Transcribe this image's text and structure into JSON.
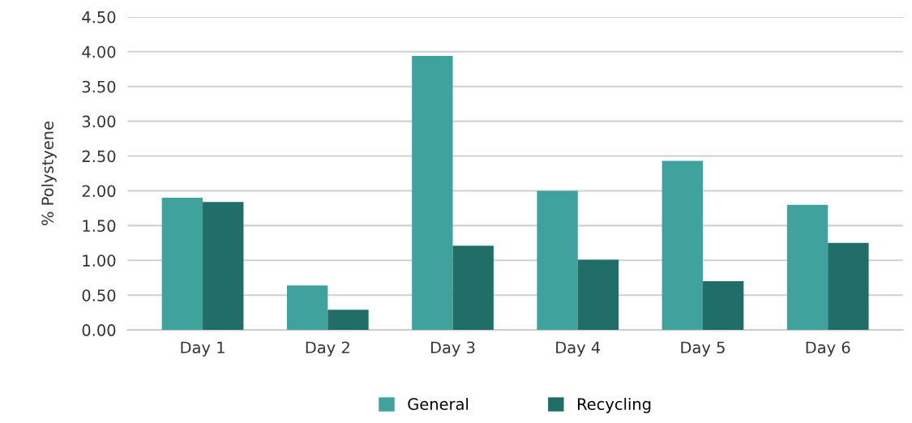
{
  "chart_data": {
    "type": "bar",
    "ylabel": "% Polystyene",
    "categories": [
      "Day 1",
      "Day 2",
      "Day 3",
      "Day 4",
      "Day 5",
      "Day 6"
    ],
    "series": [
      {
        "name": "General",
        "color": "#3fa29d",
        "values": [
          1.9,
          0.64,
          3.94,
          2.0,
          2.43,
          1.8
        ]
      },
      {
        "name": "Recycling",
        "color": "#216e69",
        "values": [
          1.84,
          0.29,
          1.21,
          1.01,
          0.7,
          1.25
        ]
      }
    ],
    "ylim": [
      0,
      4.5
    ],
    "yticks": [
      {
        "value": 0,
        "label": "0.00"
      },
      {
        "value": 0.5,
        "label": "0.50"
      },
      {
        "value": 1,
        "label": "1.00"
      },
      {
        "value": 1.5,
        "label": "1.50"
      },
      {
        "value": 2,
        "label": "2.00"
      },
      {
        "value": 2.5,
        "label": "2.50"
      },
      {
        "value": 3,
        "label": "3.00"
      },
      {
        "value": 3.5,
        "label": "3.50"
      },
      {
        "value": 4,
        "label": "4.00"
      },
      {
        "value": 4.5,
        "label": "4.50"
      }
    ],
    "grid": "y",
    "legend": "bottom"
  }
}
